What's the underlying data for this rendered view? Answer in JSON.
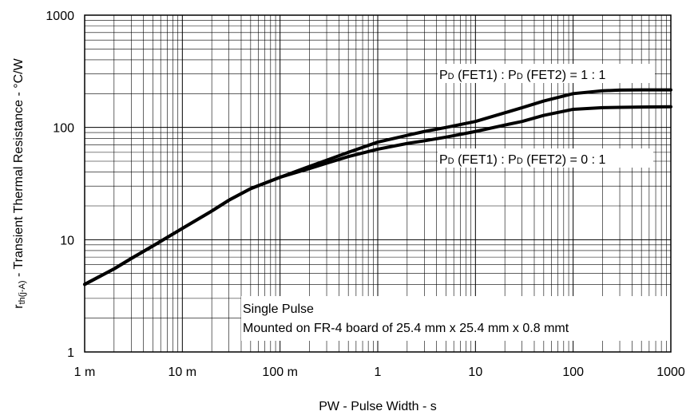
{
  "chart_data": {
    "type": "line",
    "title": "",
    "xlabel": "PW - Pulse Width - s",
    "ylabel": {
      "main": "r",
      "sub": "th(j-A)",
      "rest": " - Transient Thermal Resistance - °C/W"
    },
    "xscale": "log",
    "yscale": "log",
    "xlim": [
      0.001,
      1000
    ],
    "ylim": [
      1,
      1000
    ],
    "grid": true,
    "x_ticks": [
      {
        "value": 0.001,
        "label": "1 m"
      },
      {
        "value": 0.01,
        "label": "10 m"
      },
      {
        "value": 0.1,
        "label": "100 m"
      },
      {
        "value": 1,
        "label": "1"
      },
      {
        "value": 10,
        "label": "10"
      },
      {
        "value": 100,
        "label": "100"
      },
      {
        "value": 1000,
        "label": "1000"
      }
    ],
    "y_ticks": [
      {
        "value": 1,
        "label": "1"
      },
      {
        "value": 10,
        "label": "10"
      },
      {
        "value": 100,
        "label": "100"
      },
      {
        "value": 1000,
        "label": "1000"
      }
    ],
    "series": [
      {
        "name": "PD (FET1) : PD (FET2) = 1 : 1",
        "x": [
          0.001,
          0.002,
          0.003,
          0.005,
          0.01,
          0.02,
          0.03,
          0.05,
          0.1,
          0.2,
          0.3,
          0.5,
          1,
          2,
          3,
          5,
          10,
          20,
          30,
          50,
          100,
          200,
          300,
          500,
          1000
        ],
        "y": [
          4,
          5.5,
          6.8,
          8.8,
          12.6,
          18,
          22.5,
          28.5,
          36,
          45,
          51,
          60,
          74,
          85,
          92,
          100,
          113,
          135,
          150,
          172,
          200,
          212,
          215,
          216,
          216
        ]
      },
      {
        "name": "PD (FET1) : PD (FET2) = 0 : 1",
        "x": [
          0.001,
          0.002,
          0.003,
          0.005,
          0.01,
          0.02,
          0.03,
          0.05,
          0.1,
          0.2,
          0.3,
          0.5,
          1,
          2,
          3,
          5,
          10,
          20,
          30,
          50,
          100,
          200,
          300,
          500,
          1000
        ],
        "y": [
          4,
          5.5,
          6.8,
          8.8,
          12.6,
          18,
          22.5,
          28.5,
          36,
          43,
          48,
          55,
          64,
          72,
          76,
          82,
          92,
          105,
          113,
          128,
          145,
          150,
          151,
          152,
          153
        ]
      }
    ],
    "annotations": [
      {
        "id": "ratio-11",
        "p1": "P",
        "s1": "D",
        "m1": " (FET1) : P",
        "s2": "D",
        "m2": " (FET2) = 1 : 1",
        "x": 1000,
        "y": 260
      },
      {
        "id": "ratio-01",
        "p1": "P",
        "s1": "D",
        "m1": " (FET1) : P",
        "s2": "D",
        "m2": " (FET2) = 0 : 1",
        "x": 1000,
        "y": 70
      }
    ],
    "note": {
      "line1": "Single Pulse",
      "line2": "Mounted on FR-4 board of 25.4 mm x 25.4 mm x 0.8 mmt"
    }
  }
}
